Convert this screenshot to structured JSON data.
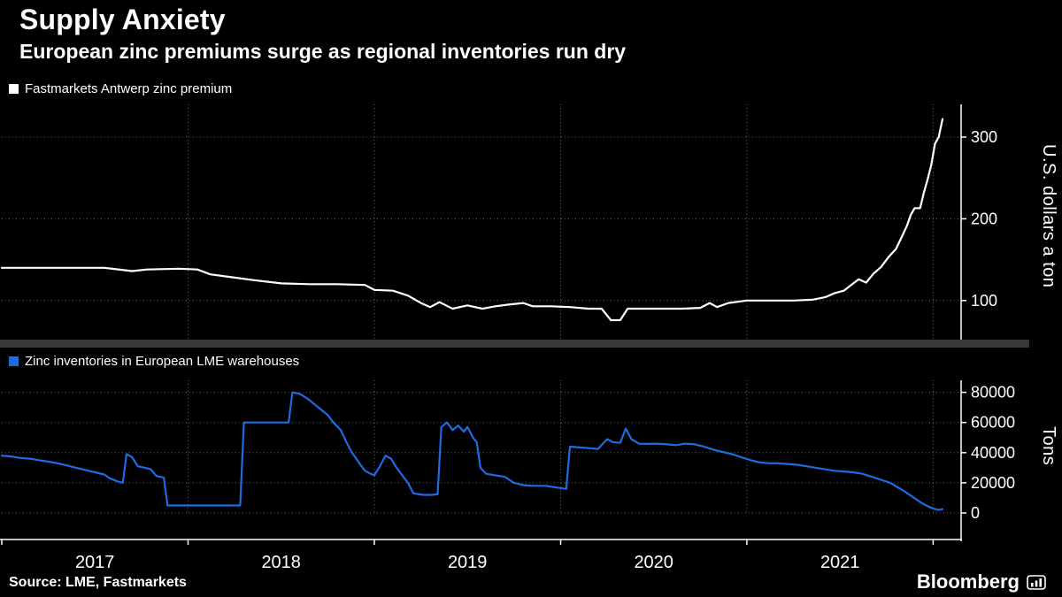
{
  "header": {
    "title": "Supply Anxiety",
    "subtitle": "European zinc premiums surge as regional inventories run dry"
  },
  "colors": {
    "background": "#000000",
    "premium_line": "#ffffff",
    "inventory_line": "#1f6be0",
    "grid": "#666666",
    "axis": "#ffffff",
    "divider": "#383838"
  },
  "xaxis": {
    "tick_years": [
      2017,
      2018,
      2019,
      2020,
      2021,
      2022
    ],
    "labels": [
      {
        "text": "2017",
        "center": 2017.5
      },
      {
        "text": "2018",
        "center": 2018.5
      },
      {
        "text": "2019",
        "center": 2019.5
      },
      {
        "text": "2020",
        "center": 2020.5
      },
      {
        "text": "2021",
        "center": 2021.5
      }
    ]
  },
  "chart_data": [
    {
      "type": "line",
      "title": "Fastmarkets Antwerp zinc premium",
      "legend": {
        "label": "Fastmarkets Antwerp zinc premium",
        "color": "#ffffff"
      },
      "xlabel": "",
      "ylabel": "U.S. dollars a ton",
      "xlim": [
        2017.0,
        2022.15
      ],
      "ylim": [
        50,
        340
      ],
      "yticks": [
        100,
        200,
        300
      ],
      "xgrid_years": [
        2018,
        2019,
        2020,
        2021,
        2022
      ],
      "series": [
        {
          "name": "Fastmarkets Antwerp zinc premium",
          "color": "#ffffff",
          "points": [
            [
              2017.0,
              140
            ],
            [
              2017.3,
              140
            ],
            [
              2017.55,
              140
            ],
            [
              2017.7,
              136
            ],
            [
              2017.78,
              138
            ],
            [
              2017.95,
              139
            ],
            [
              2018.05,
              138
            ],
            [
              2018.12,
              132
            ],
            [
              2018.22,
              129
            ],
            [
              2018.35,
              125
            ],
            [
              2018.5,
              121
            ],
            [
              2018.65,
              120
            ],
            [
              2018.8,
              120
            ],
            [
              2018.95,
              119
            ],
            [
              2019.0,
              113
            ],
            [
              2019.1,
              112
            ],
            [
              2019.18,
              106
            ],
            [
              2019.25,
              97
            ],
            [
              2019.3,
              92
            ],
            [
              2019.35,
              98
            ],
            [
              2019.42,
              90
            ],
            [
              2019.5,
              94
            ],
            [
              2019.58,
              90
            ],
            [
              2019.65,
              93
            ],
            [
              2019.72,
              95
            ],
            [
              2019.8,
              97
            ],
            [
              2019.85,
              93
            ],
            [
              2019.95,
              93
            ],
            [
              2020.05,
              92
            ],
            [
              2020.15,
              90
            ],
            [
              2020.22,
              90
            ],
            [
              2020.27,
              76
            ],
            [
              2020.32,
              76
            ],
            [
              2020.36,
              90
            ],
            [
              2020.5,
              90
            ],
            [
              2020.65,
              90
            ],
            [
              2020.75,
              91
            ],
            [
              2020.8,
              97
            ],
            [
              2020.84,
              92
            ],
            [
              2020.9,
              97
            ],
            [
              2021.0,
              100
            ],
            [
              2021.1,
              100
            ],
            [
              2021.25,
              100
            ],
            [
              2021.35,
              101
            ],
            [
              2021.42,
              104
            ],
            [
              2021.47,
              109
            ],
            [
              2021.52,
              112
            ],
            [
              2021.56,
              119
            ],
            [
              2021.6,
              126
            ],
            [
              2021.64,
              122
            ],
            [
              2021.68,
              133
            ],
            [
              2021.72,
              141
            ],
            [
              2021.76,
              153
            ],
            [
              2021.8,
              163
            ],
            [
              2021.83,
              177
            ],
            [
              2021.86,
              192
            ],
            [
              2021.88,
              205
            ],
            [
              2021.9,
              213
            ],
            [
              2021.93,
              213
            ],
            [
              2021.95,
              232
            ],
            [
              2021.97,
              248
            ],
            [
              2021.99,
              266
            ],
            [
              2022.01,
              292
            ],
            [
              2022.03,
              300
            ],
            [
              2022.05,
              322
            ]
          ]
        }
      ]
    },
    {
      "type": "line",
      "title": "Zinc inventories in European LME warehouses",
      "legend": {
        "label": "Zinc inventories in European LME warehouses",
        "color": "#1f6be0"
      },
      "xlabel": "",
      "ylabel": "Tons",
      "xlim": [
        2017.0,
        2022.15
      ],
      "ylim": [
        0,
        88000
      ],
      "yticks": [
        0,
        20000,
        40000,
        60000,
        80000
      ],
      "xgrid_years": [
        2018,
        2019,
        2020,
        2021,
        2022
      ],
      "series": [
        {
          "name": "Zinc inventories in European LME warehouses",
          "color": "#1f6be0",
          "points": [
            [
              2017.0,
              38000
            ],
            [
              2017.05,
              37500
            ],
            [
              2017.1,
              36500
            ],
            [
              2017.15,
              36000
            ],
            [
              2017.2,
              35000
            ],
            [
              2017.25,
              34000
            ],
            [
              2017.3,
              33000
            ],
            [
              2017.35,
              31500
            ],
            [
              2017.4,
              30000
            ],
            [
              2017.45,
              28500
            ],
            [
              2017.5,
              27000
            ],
            [
              2017.55,
              25500
            ],
            [
              2017.58,
              23000
            ],
            [
              2017.62,
              21000
            ],
            [
              2017.65,
              20000
            ],
            [
              2017.67,
              39000
            ],
            [
              2017.7,
              37000
            ],
            [
              2017.73,
              31000
            ],
            [
              2017.77,
              30000
            ],
            [
              2017.8,
              29000
            ],
            [
              2017.83,
              24500
            ],
            [
              2017.87,
              23500
            ],
            [
              2017.89,
              5000
            ],
            [
              2018.0,
              5000
            ],
            [
              2018.15,
              5000
            ],
            [
              2018.28,
              5000
            ],
            [
              2018.3,
              60000
            ],
            [
              2018.45,
              60000
            ],
            [
              2018.54,
              60000
            ],
            [
              2018.56,
              80000
            ],
            [
              2018.6,
              79000
            ],
            [
              2018.64,
              76000
            ],
            [
              2018.68,
              72000
            ],
            [
              2018.72,
              68000
            ],
            [
              2018.75,
              65000
            ],
            [
              2018.78,
              60000
            ],
            [
              2018.82,
              55000
            ],
            [
              2018.85,
              47000
            ],
            [
              2018.88,
              40000
            ],
            [
              2018.92,
              33000
            ],
            [
              2018.95,
              28000
            ],
            [
              2018.98,
              26000
            ],
            [
              2019.0,
              25000
            ],
            [
              2019.03,
              31000
            ],
            [
              2019.06,
              38000
            ],
            [
              2019.09,
              36000
            ],
            [
              2019.12,
              30000
            ],
            [
              2019.15,
              25000
            ],
            [
              2019.18,
              20000
            ],
            [
              2019.21,
              13000
            ],
            [
              2019.26,
              12000
            ],
            [
              2019.31,
              12000
            ],
            [
              2019.34,
              12500
            ],
            [
              2019.36,
              57000
            ],
            [
              2019.39,
              60000
            ],
            [
              2019.42,
              55000
            ],
            [
              2019.45,
              58000
            ],
            [
              2019.48,
              54000
            ],
            [
              2019.5,
              57000
            ],
            [
              2019.53,
              50000
            ],
            [
              2019.55,
              47000
            ],
            [
              2019.57,
              30000
            ],
            [
              2019.6,
              26000
            ],
            [
              2019.65,
              25000
            ],
            [
              2019.7,
              24000
            ],
            [
              2019.75,
              20000
            ],
            [
              2019.8,
              18500
            ],
            [
              2019.85,
              18000
            ],
            [
              2019.92,
              18000
            ],
            [
              2020.0,
              16500
            ],
            [
              2020.03,
              16000
            ],
            [
              2020.05,
              44000
            ],
            [
              2020.1,
              43500
            ],
            [
              2020.15,
              43000
            ],
            [
              2020.2,
              42500
            ],
            [
              2020.25,
              49000
            ],
            [
              2020.28,
              47000
            ],
            [
              2020.32,
              46500
            ],
            [
              2020.35,
              56000
            ],
            [
              2020.38,
              49000
            ],
            [
              2020.42,
              46000
            ],
            [
              2020.47,
              45800
            ],
            [
              2020.52,
              46000
            ],
            [
              2020.57,
              45500
            ],
            [
              2020.62,
              45000
            ],
            [
              2020.67,
              46000
            ],
            [
              2020.72,
              45500
            ],
            [
              2020.77,
              44000
            ],
            [
              2020.82,
              42000
            ],
            [
              2020.87,
              40500
            ],
            [
              2020.92,
              39000
            ],
            [
              2020.97,
              37000
            ],
            [
              2021.02,
              35000
            ],
            [
              2021.07,
              33500
            ],
            [
              2021.12,
              33000
            ],
            [
              2021.17,
              33000
            ],
            [
              2021.22,
              32500
            ],
            [
              2021.27,
              32000
            ],
            [
              2021.32,
              31000
            ],
            [
              2021.37,
              30000
            ],
            [
              2021.42,
              29000
            ],
            [
              2021.47,
              28000
            ],
            [
              2021.52,
              27500
            ],
            [
              2021.57,
              27000
            ],
            [
              2021.62,
              26000
            ],
            [
              2021.67,
              24000
            ],
            [
              2021.72,
              22000
            ],
            [
              2021.77,
              20000
            ],
            [
              2021.81,
              17000
            ],
            [
              2021.85,
              14000
            ],
            [
              2021.88,
              11500
            ],
            [
              2021.91,
              9000
            ],
            [
              2021.94,
              6500
            ],
            [
              2021.97,
              4500
            ],
            [
              2022.0,
              3000
            ],
            [
              2022.03,
              2000
            ],
            [
              2022.05,
              2500
            ]
          ]
        }
      ]
    }
  ],
  "footer": {
    "source": "Source: LME, Fastmarkets",
    "brand": "Bloomberg",
    "brand_icon": "terminal-bars-icon"
  }
}
